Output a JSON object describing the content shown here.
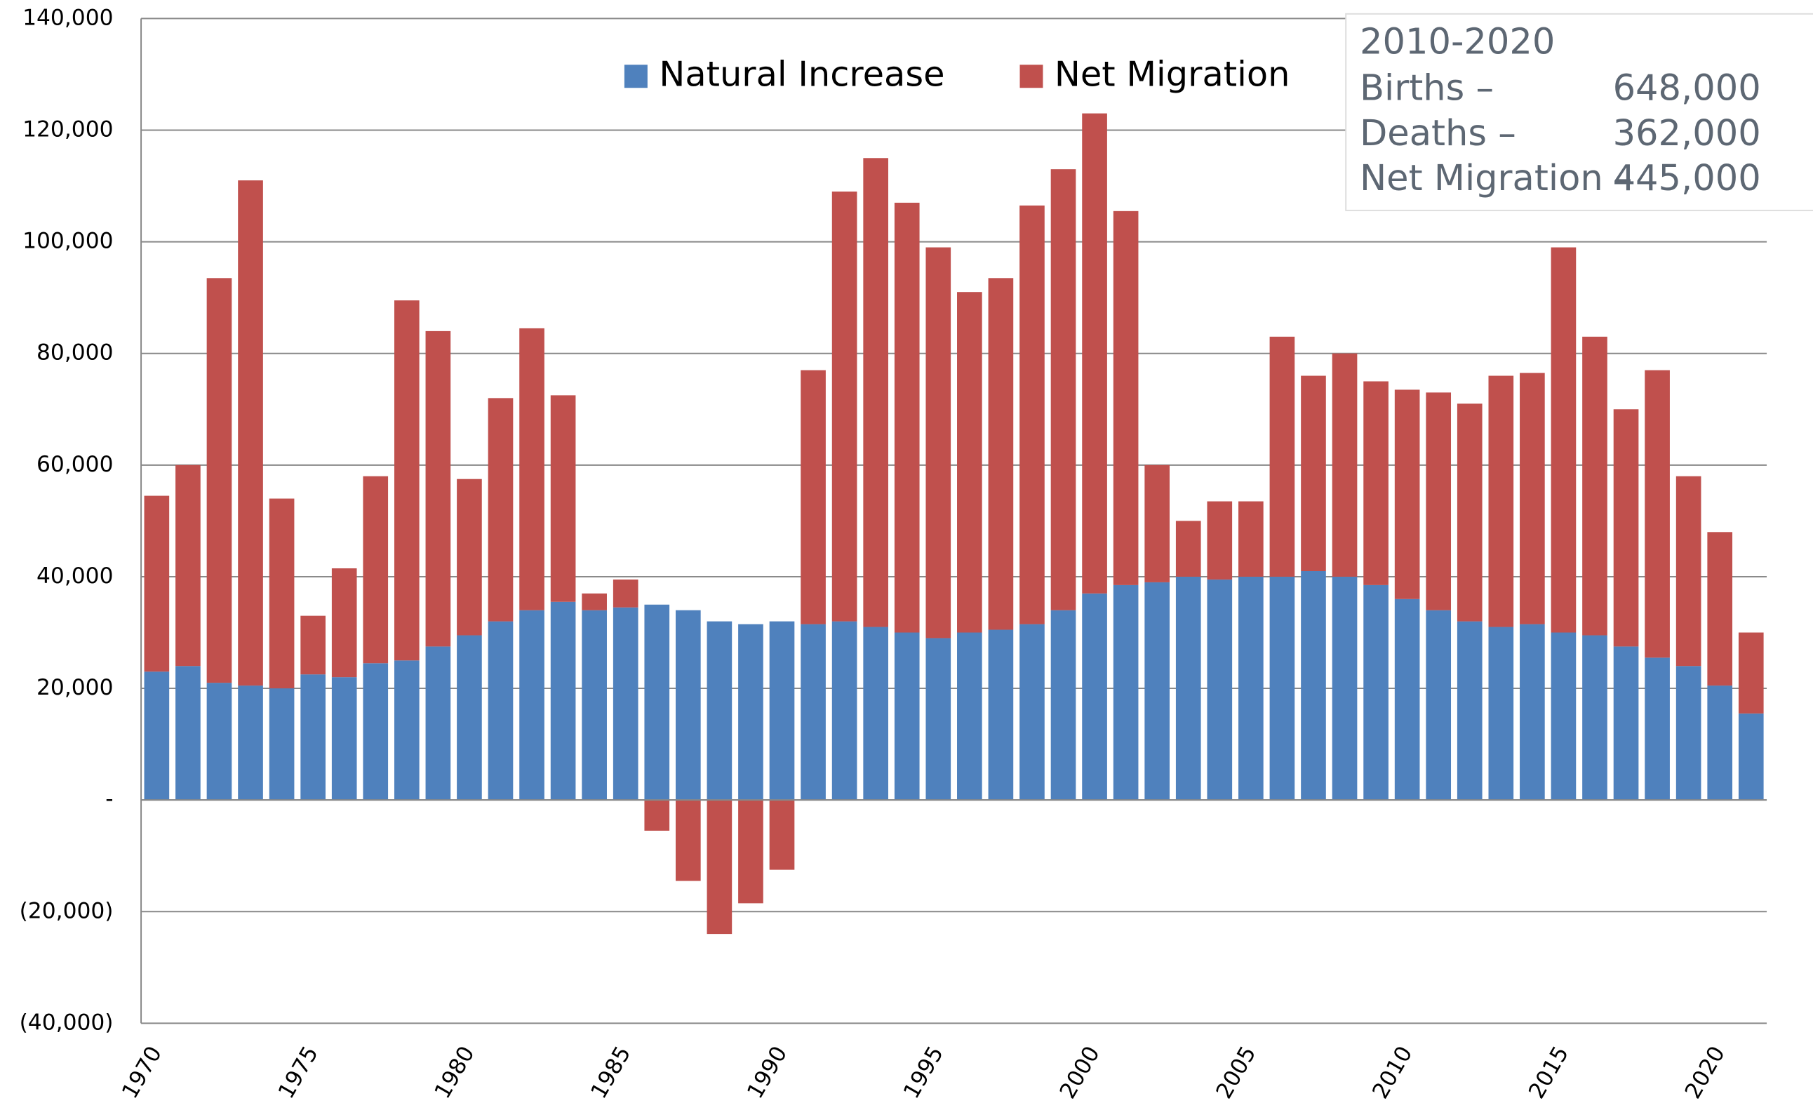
{
  "chart_data": {
    "type": "stacked_bar",
    "categories": [
      "1970",
      null,
      null,
      null,
      null,
      "1975",
      null,
      null,
      null,
      null,
      "1980",
      null,
      null,
      null,
      null,
      "1985",
      null,
      null,
      null,
      null,
      "1990",
      null,
      null,
      null,
      null,
      "1995",
      null,
      null,
      null,
      null,
      "2000",
      null,
      null,
      null,
      null,
      "2005",
      null,
      null,
      null,
      null,
      "2010",
      null,
      null,
      null,
      null,
      "2015",
      null,
      null,
      null,
      null,
      "2020",
      null
    ],
    "series": [
      {
        "name": "Natural Increase",
        "color": "#4f81bd",
        "values": [
          23000,
          24000,
          21000,
          20500,
          20000,
          22500,
          22000,
          24500,
          25000,
          27500,
          29500,
          32000,
          34000,
          35500,
          34000,
          34500,
          35000,
          34000,
          32000,
          31500,
          32000,
          31500,
          32000,
          31000,
          30000,
          29000,
          30000,
          30500,
          31500,
          34000,
          37000,
          38500,
          39000,
          40000,
          39500,
          40000,
          40000,
          41000,
          40000,
          38500,
          36000,
          34000,
          32000,
          31000,
          31500,
          30000,
          29500,
          27500,
          25500,
          24000,
          20500,
          15500
        ]
      },
      {
        "name": "Net Migration",
        "color": "#c0504d",
        "values": [
          31500,
          36000,
          72500,
          90500,
          34000,
          10500,
          19500,
          33500,
          64500,
          56500,
          28000,
          40000,
          50500,
          37000,
          3000,
          5000,
          -5500,
          -14500,
          -24000,
          -18500,
          -12500,
          45500,
          77000,
          84000,
          77000,
          70000,
          61000,
          63000,
          75000,
          79000,
          86000,
          67000,
          21000,
          10000,
          14000,
          13500,
          43000,
          35000,
          40000,
          36500,
          37500,
          39000,
          39000,
          45000,
          45000,
          69000,
          53500,
          42500,
          51500,
          34000,
          27500,
          14500
        ]
      }
    ],
    "ylim": [
      -40000,
      140000
    ],
    "yticks": [
      {
        "value": -40000,
        "label": "(40,000)"
      },
      {
        "value": -20000,
        "label": "(20,000)"
      },
      {
        "value": 0,
        "label": "-"
      },
      {
        "value": 20000,
        "label": "20,000"
      },
      {
        "value": 40000,
        "label": "40,000"
      },
      {
        "value": 60000,
        "label": "60,000"
      },
      {
        "value": 80000,
        "label": "80,000"
      },
      {
        "value": 100000,
        "label": "100,000"
      },
      {
        "value": 120000,
        "label": "120,000"
      },
      {
        "value": 140000,
        "label": "140,000"
      }
    ],
    "grid": true,
    "legend": "top",
    "annotation": {
      "title": "2010-2020",
      "rows": [
        {
          "label": "Births –",
          "value": "648,000"
        },
        {
          "label": "Deaths –",
          "value": "362,000"
        },
        {
          "label": "Net Migration –",
          "value": "445,000"
        }
      ]
    }
  }
}
